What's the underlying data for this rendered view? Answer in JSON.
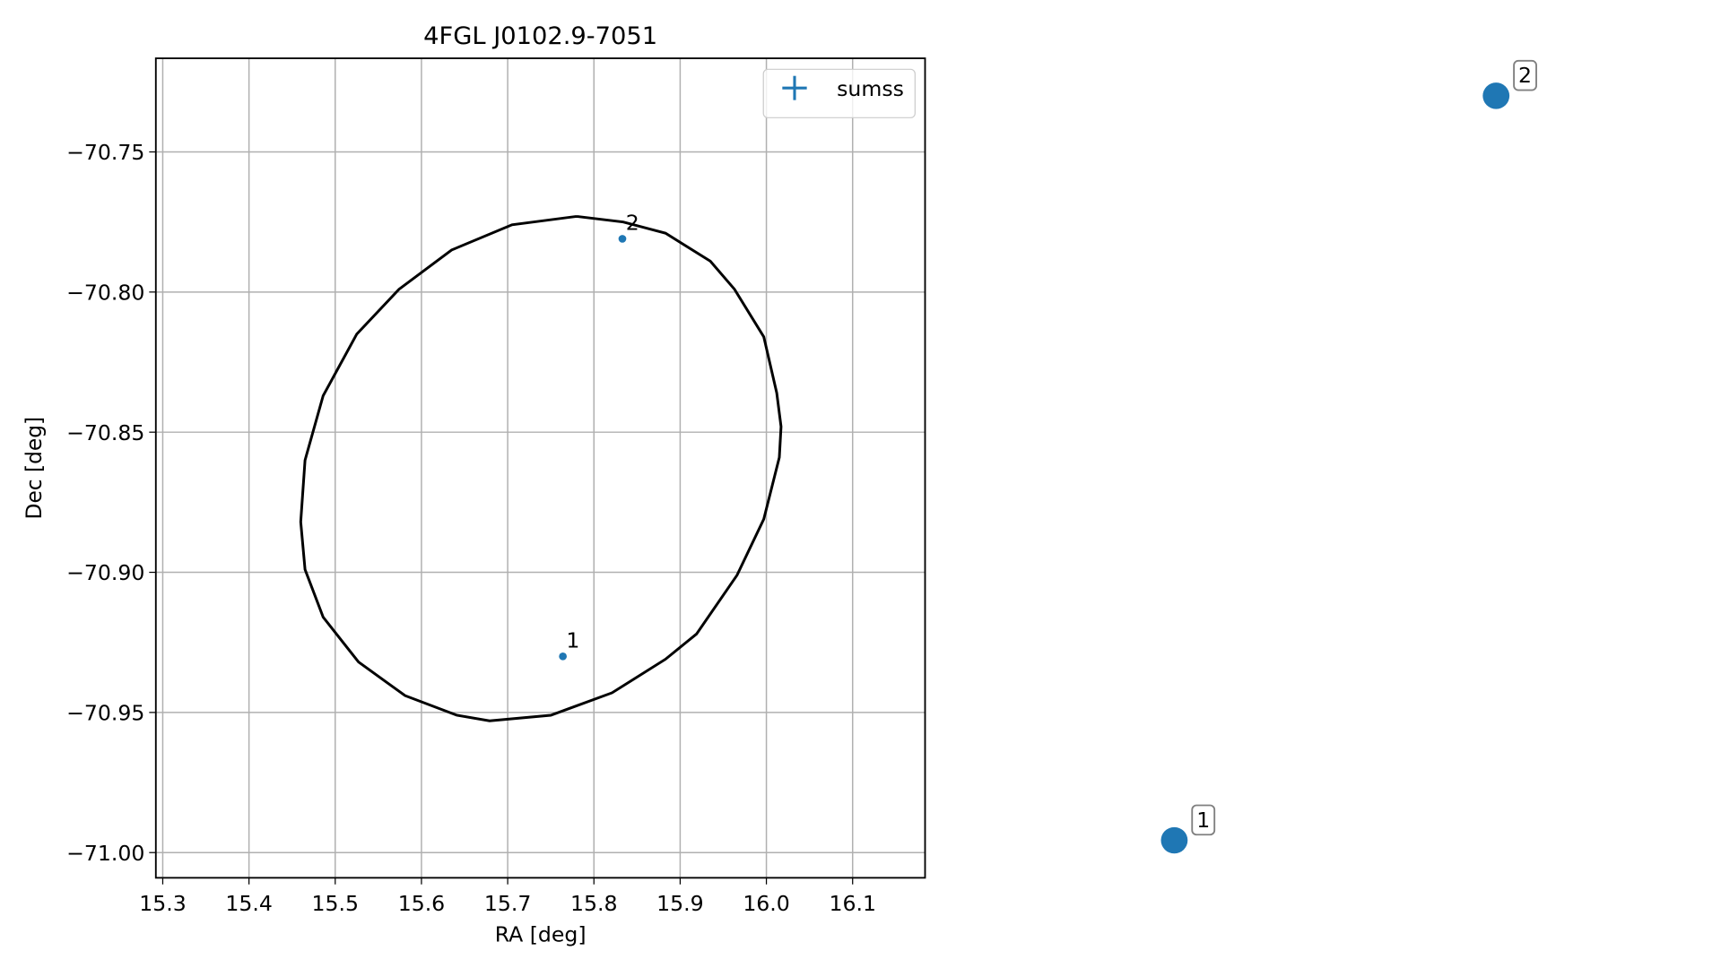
{
  "chart_data": [
    {
      "type": "scatter",
      "title": "4FGL J0102.9-7051",
      "xlabel": "RA [deg]",
      "ylabel": "Dec [deg]",
      "xlim": [
        15.292,
        16.184
      ],
      "ylim": [
        -71.009,
        -70.7166
      ],
      "xticks": [
        15.3,
        15.4,
        15.5,
        15.6,
        15.7,
        15.8,
        15.9,
        {
          "value": 16,
          "label": "16.0"
        },
        16.1
      ],
      "yticks": [
        {
          "value": -70.75,
          "label": "−70.75"
        },
        {
          "value": -70.8,
          "label": "−70.80"
        },
        {
          "value": -70.85,
          "label": "−70.85"
        },
        {
          "value": -70.9,
          "label": "−70.90"
        },
        {
          "value": -70.95,
          "label": "−70.95"
        },
        {
          "value": -71,
          "label": "−71.00"
        }
      ],
      "grid": true,
      "legend": "upper right",
      "series": [
        {
          "name": "sumss",
          "color": "#1f77b4",
          "x": [
            15.764,
            15.833
          ],
          "y": [
            -70.93,
            -70.781
          ],
          "labels": [
            "1",
            "2"
          ]
        }
      ],
      "ellipse": {
        "color": "#000000",
        "x": [
          15.78,
          15.834,
          15.883,
          15.935,
          15.963,
          15.997,
          16.012,
          16.017,
          16.015,
          15.997,
          15.966,
          15.919,
          15.883,
          15.821,
          15.75,
          15.679,
          15.641,
          15.581,
          15.527,
          15.486,
          15.465,
          15.46,
          15.465,
          15.486,
          15.525,
          15.574,
          15.635,
          15.705,
          15.78
        ],
        "y": [
          -70.773,
          -70.775,
          -70.779,
          -70.789,
          -70.799,
          -70.816,
          -70.836,
          -70.848,
          -70.859,
          -70.881,
          -70.901,
          -70.922,
          -70.931,
          -70.943,
          -70.951,
          -70.953,
          -70.951,
          -70.944,
          -70.932,
          -70.916,
          -70.899,
          -70.882,
          -70.86,
          -70.837,
          -70.815,
          -70.799,
          -70.785,
          -70.776,
          -70.773
        ]
      }
    },
    {
      "type": "scatter",
      "xlim": [
        15.7509,
        15.8774
      ],
      "ylim": [
        -70.9375,
        -70.7735
      ],
      "label_box": true,
      "series": [
        {
          "color": "#1f77b4",
          "x": [
            15.764,
            15.833
          ],
          "y": [
            -70.93,
            -70.781
          ],
          "labels": [
            "1",
            "2"
          ]
        }
      ]
    }
  ]
}
